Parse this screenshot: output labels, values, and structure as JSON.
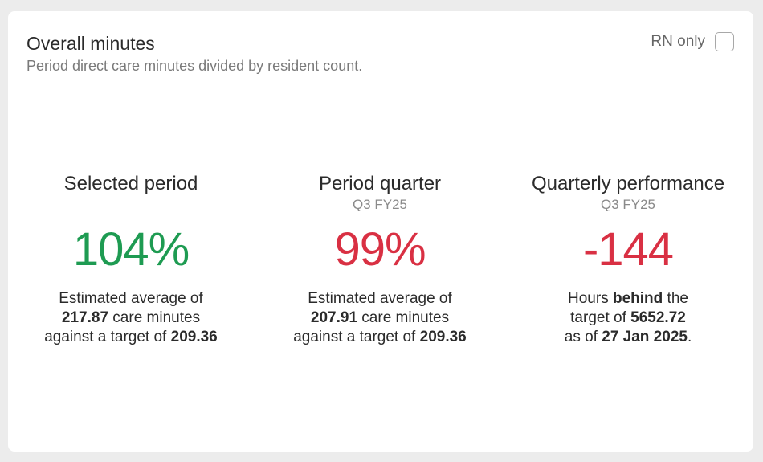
{
  "card": {
    "title": "Overall minutes",
    "subtitle": "Period direct care minutes divided by resident count.",
    "toggle_label": "RN only",
    "toggle_checked": false
  },
  "metrics": [
    {
      "title": "Selected period",
      "subtitle": "",
      "value": "104%",
      "status_color": "#1e9b52",
      "desc": {
        "line1": "Estimated average of",
        "line2_bold": "217.87",
        "line2_rest": " care minutes",
        "line3_text": "against a target of ",
        "line3_bold": "209.36"
      }
    },
    {
      "title": "Period quarter",
      "subtitle": "Q3 FY25",
      "value": "99%",
      "status_color": "#d93043",
      "desc": {
        "line1": "Estimated average of",
        "line2_bold": "207.91",
        "line2_rest": " care minutes",
        "line3_text": "against a target of ",
        "line3_bold": "209.36"
      }
    },
    {
      "title": "Quarterly performance",
      "subtitle": "Q3 FY25",
      "value": "-144",
      "status_color": "#d93043",
      "desc": {
        "line1_pre": "Hours ",
        "line1_bold": "behind",
        "line1_post": " the",
        "line2_text": "target of ",
        "line2_bold": "5652.72",
        "line3_text": "as of ",
        "line3_bold": "27 Jan 2025",
        "line3_post": "."
      }
    }
  ]
}
